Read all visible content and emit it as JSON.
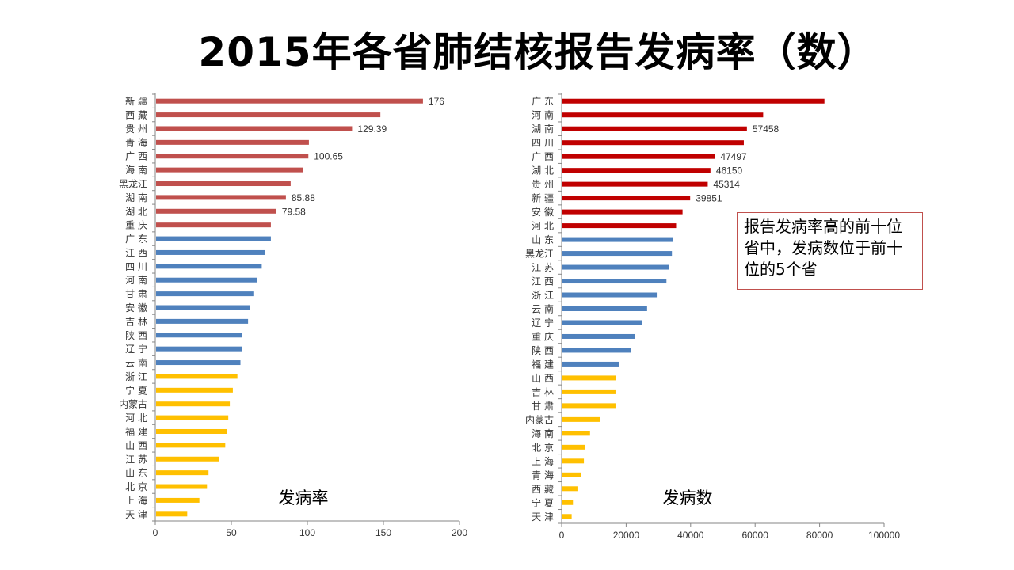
{
  "title": "2015年各省肺结核报告发病率（数）",
  "note": "报告发病率高的前十位省中，发病数位于前十位的5个省",
  "colors": {
    "red1": "#c0504d",
    "red2": "#c00000",
    "blue": "#4f81bd",
    "yellow": "#ffc000"
  },
  "chart_data": [
    {
      "type": "bar",
      "orientation": "horizontal",
      "annotation": "发病率",
      "xlim": [
        0,
        200
      ],
      "xticks": [
        0,
        50,
        100,
        150,
        200
      ],
      "categories": [
        "新 疆",
        "西 藏",
        "贵 州",
        "青 海",
        "广 西",
        "海 南",
        "黑龙江",
        "湖 南",
        "湖 北",
        "重 庆",
        "广 东",
        "江 西",
        "四 川",
        "河 南",
        "甘 肃",
        "安 徽",
        "吉 林",
        "陕 西",
        "辽 宁",
        "云 南",
        "浙 江",
        "宁 夏",
        "内蒙古",
        "河 北",
        "福 建",
        "山 西",
        "江 苏",
        "山 东",
        "北 京",
        "上 海",
        "天 津"
      ],
      "values": [
        176,
        148,
        129.39,
        101,
        100.65,
        97,
        89,
        85.88,
        79.58,
        76,
        76,
        72,
        70,
        67,
        65,
        62,
        61,
        57,
        57,
        56,
        54,
        51,
        49,
        48,
        47,
        46,
        42,
        35,
        34,
        29,
        21
      ],
      "data_labels": {
        "0": "176",
        "2": "129.39",
        "4": "100.65",
        "7": "85.88",
        "8": "79.58"
      },
      "group_colors": [
        "red1",
        "red1",
        "red1",
        "red1",
        "red1",
        "red1",
        "red1",
        "red1",
        "red1",
        "red1",
        "blue",
        "blue",
        "blue",
        "blue",
        "blue",
        "blue",
        "blue",
        "blue",
        "blue",
        "blue",
        "yellow",
        "yellow",
        "yellow",
        "yellow",
        "yellow",
        "yellow",
        "yellow",
        "yellow",
        "yellow",
        "yellow",
        "yellow"
      ]
    },
    {
      "type": "bar",
      "orientation": "horizontal",
      "annotation": "发病数",
      "xlim": [
        0,
        100000
      ],
      "xticks": [
        0,
        20000,
        40000,
        60000,
        80000,
        100000
      ],
      "categories": [
        "广 东",
        "河 南",
        "湖 南",
        "四 川",
        "广 西",
        "湖 北",
        "贵 州",
        "新 疆",
        "安 徽",
        "河 北",
        "山 东",
        "黑龙江",
        "江 苏",
        "江 西",
        "浙 江",
        "云 南",
        "辽 宁",
        "重 庆",
        "陕 西",
        "福 建",
        "山 西",
        "吉 林",
        "甘 肃",
        "内蒙古",
        "海 南",
        "北 京",
        "上 海",
        "青 海",
        "西 藏",
        "宁 夏",
        "天 津"
      ],
      "values": [
        81500,
        62500,
        57458,
        56500,
        47497,
        46150,
        45314,
        39851,
        37500,
        35500,
        34500,
        34200,
        33300,
        32500,
        29500,
        26500,
        25000,
        22800,
        21500,
        17800,
        16800,
        16700,
        16700,
        12000,
        8800,
        7200,
        6900,
        5900,
        4900,
        3500,
        3100
      ],
      "data_labels": {
        "2": "57458",
        "4": "47497",
        "5": "46150",
        "6": "45314",
        "7": "39851"
      },
      "group_colors": [
        "red2",
        "red2",
        "red2",
        "red2",
        "red2",
        "red2",
        "red2",
        "red2",
        "red2",
        "red2",
        "blue",
        "blue",
        "blue",
        "blue",
        "blue",
        "blue",
        "blue",
        "blue",
        "blue",
        "blue",
        "yellow",
        "yellow",
        "yellow",
        "yellow",
        "yellow",
        "yellow",
        "yellow",
        "yellow",
        "yellow",
        "yellow",
        "yellow"
      ]
    }
  ]
}
